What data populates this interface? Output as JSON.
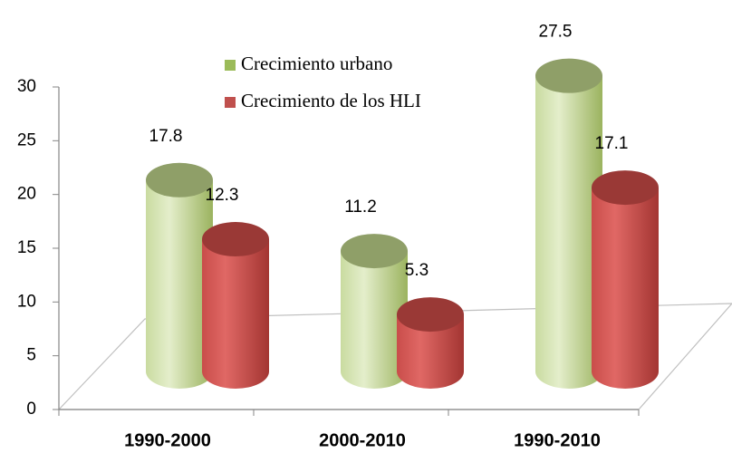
{
  "chart_data": {
    "type": "bar3d",
    "categories": [
      "1990-2000",
      "2000-2010",
      "1990-2010"
    ],
    "series": [
      {
        "name": "Crecimiento urbano",
        "color": "#9bbb59",
        "values": [
          17.8,
          11.2,
          27.5
        ]
      },
      {
        "name": "Crecimiento de los HLI",
        "color": "#c0504d",
        "values": [
          12.3,
          5.3,
          17.1
        ]
      }
    ],
    "ylim": [
      0,
      30
    ],
    "yticks": [
      0,
      5,
      10,
      15,
      20,
      25,
      30
    ]
  }
}
